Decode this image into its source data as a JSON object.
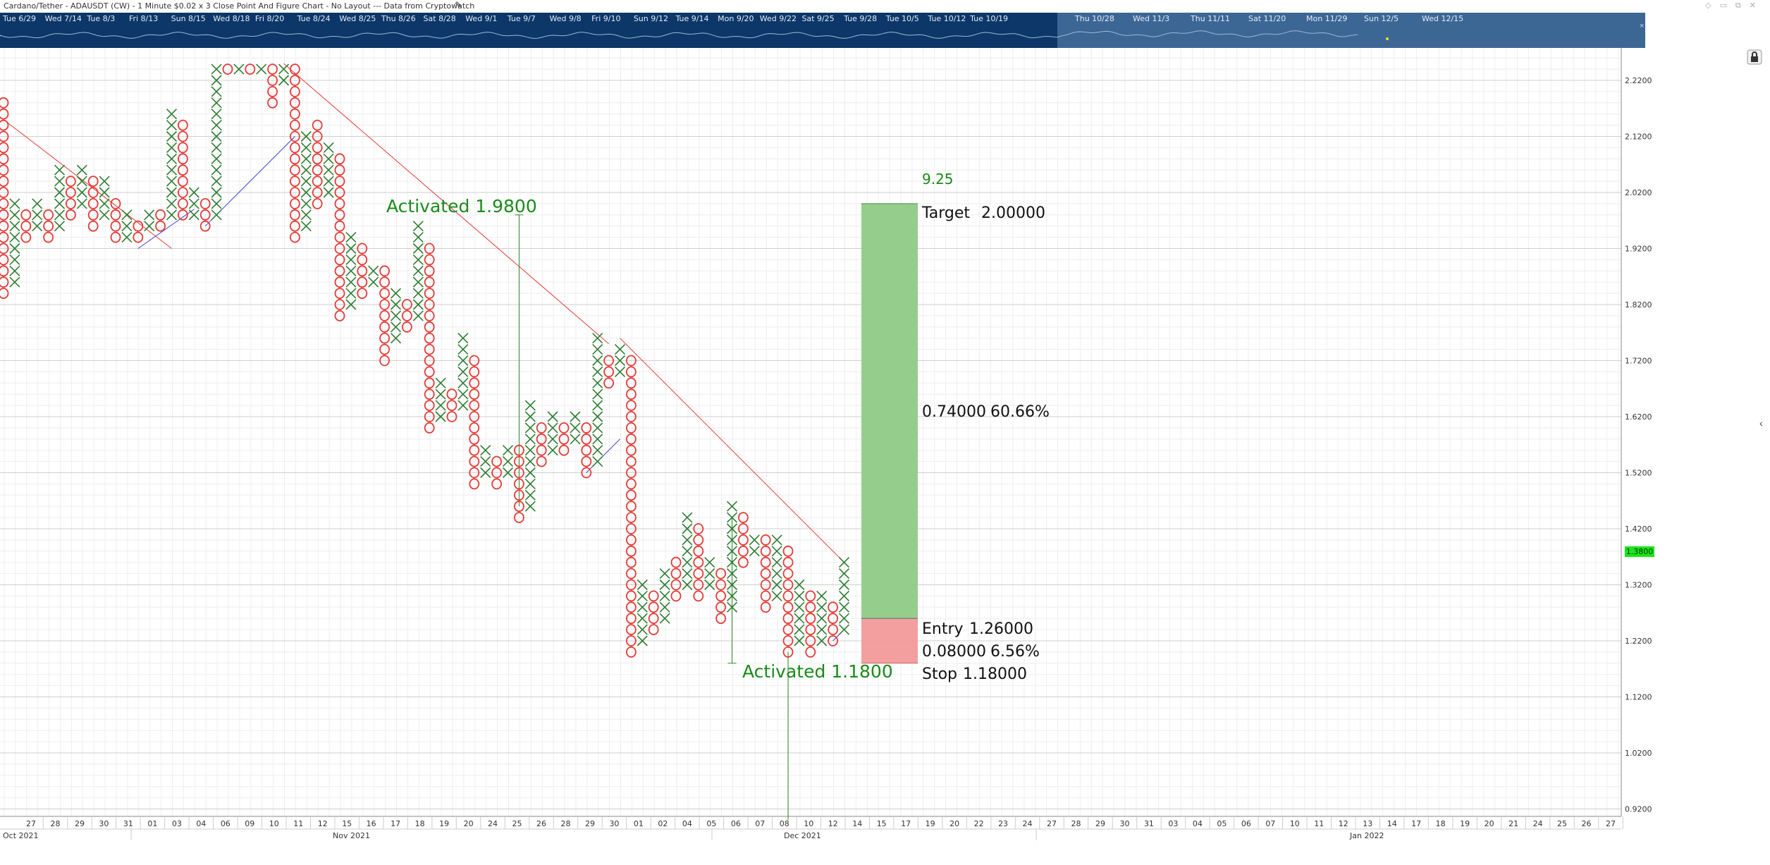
{
  "title": "Cardano/Tether - ADAUSDT (CW) - 1 Minute $0.02 x 3 Close Point And Figure Chart - No Layout --- Data from Cryptowatch",
  "icons": {
    "edit": "pencil-icon",
    "lock": "lock-icon",
    "collapse": "chevron-left-icon",
    "nav_close": "close-icon"
  },
  "colors": {
    "x_mark": "#2e7d32",
    "o_mark": "#e53935",
    "target_zone": "#8fca86",
    "stop_zone": "#f39a9a",
    "label_green": "#1a8a1a",
    "trend_red": "#e53935",
    "trend_blue": "#3a3ad6",
    "price_tag": "#19e619",
    "navigator_bg": "#0c3768"
  },
  "navigator": {
    "dates": [
      "Tue 6/29",
      "Wed 7/14",
      "Tue 8/3",
      "Fri 8/13",
      "Sun 8/15",
      "Wed 8/18",
      "Fri 8/20",
      "Tue 8/24",
      "Wed 8/25",
      "Thu 8/26",
      "Sat 8/28",
      "Wed 9/1",
      "Tue 9/7",
      "Wed 9/8",
      "Fri 9/10",
      "Sun 9/12",
      "Tue 9/14",
      "Mon 9/20",
      "Wed 9/22",
      "Sat 9/25",
      "Tue 9/28",
      "Tue 10/5",
      "Tue 10/12",
      "Tue 10/19",
      "Thu 10/28",
      "Wed 11/3",
      "Thu 11/11",
      "Sat 11/20",
      "Mon 11/29",
      "Sun 12/5",
      "Wed 12/15"
    ],
    "close_label": "×"
  },
  "chart_data": {
    "type": "point-and-figure",
    "title": "Cardano/Tether - ADAUSDT (CW) - 1 Minute $0.02 x 3 Close Point And Figure Chart - No Layout --- Data from Cryptowatch",
    "box_size": 0.02,
    "reversal": 3,
    "ylim": [
      0.9,
      2.26
    ],
    "y_ticks": [
      "2.2200",
      "2.1200",
      "2.0200",
      "1.9200",
      "1.8200",
      "1.7200",
      "1.6200",
      "1.5200",
      "1.4200",
      "1.3200",
      "1.2200",
      "1.1200",
      "1.0200",
      "0.9200"
    ],
    "last_price": "1.3800",
    "columns": [
      {
        "type": "O",
        "high": 2.18,
        "low": 1.84
      },
      {
        "type": "X",
        "high": 2.0,
        "low": 1.86
      },
      {
        "type": "O",
        "high": 1.98,
        "low": 1.94
      },
      {
        "type": "X",
        "high": 2.0,
        "low": 1.96
      },
      {
        "type": "O",
        "high": 1.98,
        "low": 1.94
      },
      {
        "type": "X",
        "high": 2.06,
        "low": 1.96
      },
      {
        "type": "O",
        "high": 2.04,
        "low": 1.98
      },
      {
        "type": "X",
        "high": 2.06,
        "low": 2.0
      },
      {
        "type": "O",
        "high": 2.04,
        "low": 1.96
      },
      {
        "type": "X",
        "high": 2.04,
        "low": 1.98
      },
      {
        "type": "O",
        "high": 2.0,
        "low": 1.94
      },
      {
        "type": "X",
        "high": 1.98,
        "low": 1.94
      },
      {
        "type": "O",
        "high": 1.96,
        "low": 1.94
      },
      {
        "type": "X",
        "high": 1.98,
        "low": 1.96
      },
      {
        "type": "O",
        "high": 1.98,
        "low": 1.96
      },
      {
        "type": "X",
        "high": 2.16,
        "low": 1.98
      },
      {
        "type": "O",
        "high": 2.14,
        "low": 1.98
      },
      {
        "type": "X",
        "high": 2.02,
        "low": 1.98
      },
      {
        "type": "O",
        "high": 2.0,
        "low": 1.96
      },
      {
        "type": "X",
        "high": 2.24,
        "low": 1.98
      },
      {
        "type": "O",
        "high": 2.24,
        "low": 2.24
      },
      {
        "type": "X",
        "high": 2.24,
        "low": 2.24
      },
      {
        "type": "O",
        "high": 2.24,
        "low": 2.24
      },
      {
        "type": "X",
        "high": 2.24,
        "low": 2.24
      },
      {
        "type": "O",
        "high": 2.24,
        "low": 2.18
      },
      {
        "type": "X",
        "high": 2.24,
        "low": 2.22
      },
      {
        "type": "O",
        "high": 2.24,
        "low": 1.94
      },
      {
        "type": "X",
        "high": 2.12,
        "low": 1.96
      },
      {
        "type": "O",
        "high": 2.14,
        "low": 2.0
      },
      {
        "type": "X",
        "high": 2.1,
        "low": 2.02
      },
      {
        "type": "O",
        "high": 2.08,
        "low": 1.8
      },
      {
        "type": "X",
        "high": 1.94,
        "low": 1.82
      },
      {
        "type": "O",
        "high": 1.92,
        "low": 1.84
      },
      {
        "type": "X",
        "high": 1.88,
        "low": 1.86
      },
      {
        "type": "O",
        "high": 1.88,
        "low": 1.72
      },
      {
        "type": "X",
        "high": 1.84,
        "low": 1.76
      },
      {
        "type": "O",
        "high": 1.82,
        "low": 1.78
      },
      {
        "type": "X",
        "high": 1.96,
        "low": 1.8
      },
      {
        "type": "O",
        "high": 1.92,
        "low": 1.6
      },
      {
        "type": "X",
        "high": 1.68,
        "low": 1.62
      },
      {
        "type": "O",
        "high": 1.66,
        "low": 1.62
      },
      {
        "type": "X",
        "high": 1.76,
        "low": 1.64
      },
      {
        "type": "O",
        "high": 1.72,
        "low": 1.5
      },
      {
        "type": "X",
        "high": 1.56,
        "low": 1.52
      },
      {
        "type": "O",
        "high": 1.54,
        "low": 1.5
      },
      {
        "type": "X",
        "high": 1.56,
        "low": 1.52
      },
      {
        "type": "O",
        "high": 1.56,
        "low": 1.44
      },
      {
        "type": "X",
        "high": 1.64,
        "low": 1.46
      },
      {
        "type": "O",
        "high": 1.6,
        "low": 1.54
      },
      {
        "type": "X",
        "high": 1.62,
        "low": 1.56
      },
      {
        "type": "O",
        "high": 1.6,
        "low": 1.56
      },
      {
        "type": "X",
        "high": 1.62,
        "low": 1.58
      },
      {
        "type": "O",
        "high": 1.6,
        "low": 1.52
      },
      {
        "type": "X",
        "high": 1.76,
        "low": 1.54
      },
      {
        "type": "O",
        "high": 1.72,
        "low": 1.68
      },
      {
        "type": "X",
        "high": 1.74,
        "low": 1.7
      },
      {
        "type": "O",
        "high": 1.72,
        "low": 1.2
      },
      {
        "type": "X",
        "high": 1.32,
        "low": 1.22
      },
      {
        "type": "O",
        "high": 1.3,
        "low": 1.24
      },
      {
        "type": "X",
        "high": 1.34,
        "low": 1.26
      },
      {
        "type": "O",
        "high": 1.36,
        "low": 1.3
      },
      {
        "type": "X",
        "high": 1.44,
        "low": 1.32
      },
      {
        "type": "O",
        "high": 1.42,
        "low": 1.3
      },
      {
        "type": "X",
        "high": 1.36,
        "low": 1.32
      },
      {
        "type": "O",
        "high": 1.34,
        "low": 1.26
      },
      {
        "type": "X",
        "high": 1.46,
        "low": 1.28
      },
      {
        "type": "O",
        "high": 1.44,
        "low": 1.36
      },
      {
        "type": "X",
        "high": 1.4,
        "low": 1.38
      },
      {
        "type": "O",
        "high": 1.4,
        "low": 1.28
      },
      {
        "type": "X",
        "high": 1.4,
        "low": 1.3
      },
      {
        "type": "O",
        "high": 1.38,
        "low": 1.2
      },
      {
        "type": "X",
        "high": 1.32,
        "low": 1.22
      },
      {
        "type": "O",
        "high": 1.3,
        "low": 1.2
      },
      {
        "type": "X",
        "high": 1.3,
        "low": 1.22
      },
      {
        "type": "O",
        "high": 1.28,
        "low": 1.22
      },
      {
        "type": "X",
        "high": 1.36,
        "low": 1.24
      }
    ],
    "trend_lines": [
      {
        "color": "red",
        "from": {
          "col": 0,
          "price": 2.15
        },
        "to": {
          "col": 15,
          "price": 1.92
        }
      },
      {
        "color": "red",
        "from": {
          "col": 25,
          "price": 2.25
        },
        "to": {
          "col": 54,
          "price": 1.75
        }
      },
      {
        "color": "red",
        "from": {
          "col": 55,
          "price": 1.76
        },
        "to": {
          "col": 75,
          "price": 1.36
        }
      },
      {
        "color": "blue",
        "from": {
          "col": 12,
          "price": 1.92
        },
        "to": {
          "col": 17,
          "price": 1.99
        }
      },
      {
        "color": "blue",
        "from": {
          "col": 18,
          "price": 1.96
        },
        "to": {
          "col": 26,
          "price": 2.12
        }
      },
      {
        "color": "blue",
        "from": {
          "col": 52,
          "price": 1.52
        },
        "to": {
          "col": 55,
          "price": 1.58
        }
      },
      {
        "color": "blue",
        "from": {
          "col": 74,
          "price": 1.22
        },
        "to": {
          "col": 75,
          "price": 1.24
        }
      }
    ],
    "vertical_counts": [
      {
        "col": 46,
        "from": 1.46,
        "to": 1.98,
        "label": "Activated 1.9800"
      },
      {
        "col": 65,
        "from": 1.44,
        "to": 1.18,
        "label": "Activated 1.1800"
      },
      {
        "col": 70,
        "from": 1.2,
        "to": 0.9
      }
    ],
    "trade": {
      "count_label": "9.25",
      "target_label": "Target",
      "target_value": "2.00000",
      "target_price": 2.0,
      "entry_label": "Entry",
      "entry_value": "1.26000",
      "entry_price": 1.26,
      "stop_label": "Stop",
      "stop_value": "1.18000",
      "stop_price": 1.18,
      "reward": "0.74000",
      "reward_pct": "60.66%",
      "risk": "0.08000",
      "risk_pct": "6.56%"
    },
    "x_ticks": [
      "27",
      "28",
      "29",
      "30",
      "31",
      "01",
      "03",
      "04",
      "06",
      "09",
      "10",
      "11",
      "12",
      "15",
      "16",
      "17",
      "18",
      "19",
      "20",
      "24",
      "25",
      "26",
      "28",
      "29",
      "30",
      "01",
      "02",
      "04",
      "05",
      "06",
      "07",
      "08",
      "10",
      "12",
      "14",
      "15",
      "17",
      "19",
      "20",
      "22",
      "23",
      "24",
      "27",
      "28",
      "29",
      "30",
      "31",
      "03",
      "04",
      "05",
      "06",
      "07",
      "10",
      "11",
      "12",
      "13",
      "14",
      "17",
      "18",
      "19",
      "20",
      "21",
      "24",
      "25",
      "26",
      "27"
    ],
    "x_months": [
      "Oct 2021",
      "Nov 2021",
      "Dec 2021",
      "Jan 2022"
    ]
  }
}
